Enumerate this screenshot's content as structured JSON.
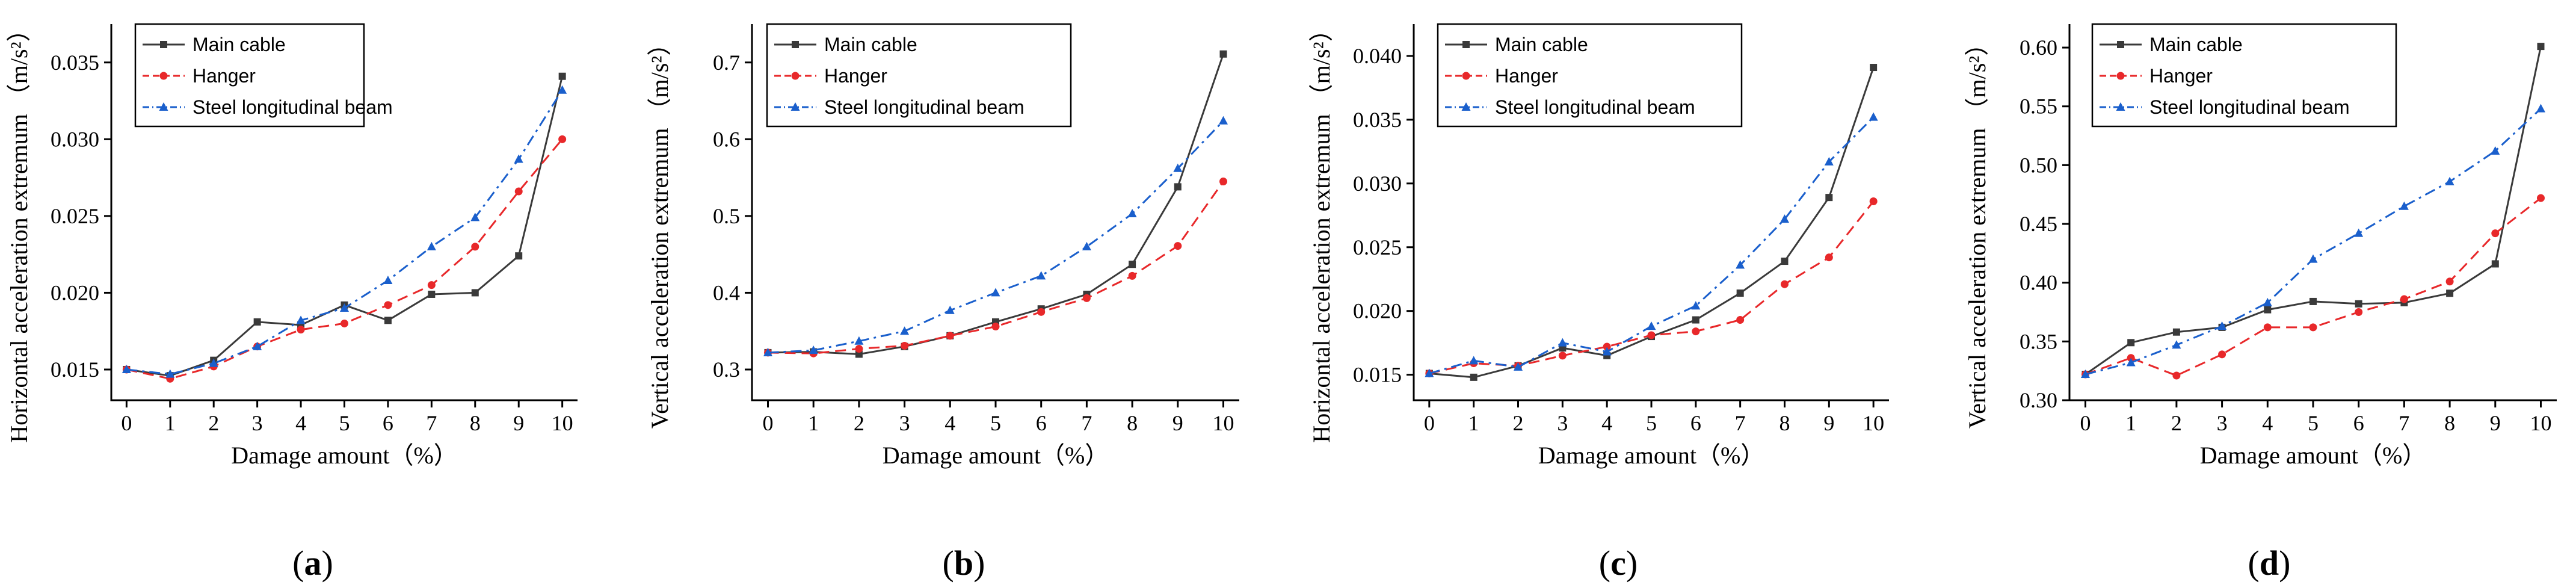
{
  "colors": {
    "main_cable": "#3a3a3a",
    "hanger": "#e8282a",
    "steel_beam": "#1a5fcc"
  },
  "chart_data": [
    {
      "type": "line",
      "panel": "(a)",
      "xlabel": "Damage amount（%）",
      "ylabel": "Horizontal acceleration extremum",
      "yunit": "（m/s²）",
      "ylim": [
        0.013,
        0.0375
      ],
      "yticks": [
        "0.015",
        "0.020",
        "0.025",
        "0.030",
        "0.035"
      ],
      "legend_position": "top-left",
      "x": [
        0,
        1,
        2,
        3,
        4,
        5,
        6,
        7,
        8,
        9,
        10
      ],
      "series": [
        {
          "name": "Main cable",
          "values": [
            0.015,
            0.0146,
            0.0156,
            0.0181,
            0.0179,
            0.0192,
            0.0182,
            0.0199,
            0.02,
            0.0224,
            0.0341
          ]
        },
        {
          "name": "Hanger",
          "values": [
            0.015,
            0.0144,
            0.0152,
            0.0165,
            0.0176,
            0.018,
            0.0192,
            0.0205,
            0.023,
            0.0266,
            0.03
          ]
        },
        {
          "name": "Steel longitudinal beam",
          "values": [
            0.015,
            0.0147,
            0.0154,
            0.0165,
            0.0182,
            0.019,
            0.0208,
            0.023,
            0.0249,
            0.0287,
            0.0332
          ]
        }
      ]
    },
    {
      "type": "line",
      "panel": "(b)",
      "xlabel": "Damage amount（%）",
      "ylabel": "Vertical acceleration extremum",
      "yunit": "（m/s²）",
      "ylim": [
        0.26,
        0.75
      ],
      "yticks": [
        "0.3",
        "0.4",
        "0.5",
        "0.6",
        "0.7"
      ],
      "legend_position": "top-left",
      "x": [
        0,
        1,
        2,
        3,
        4,
        5,
        6,
        7,
        8,
        9,
        10
      ],
      "series": [
        {
          "name": "Main cable",
          "values": [
            0.322,
            0.323,
            0.32,
            0.33,
            0.344,
            0.362,
            0.379,
            0.398,
            0.437,
            0.538,
            0.711
          ]
        },
        {
          "name": "Hanger",
          "values": [
            0.322,
            0.321,
            0.327,
            0.331,
            0.344,
            0.356,
            0.375,
            0.393,
            0.422,
            0.461,
            0.545
          ]
        },
        {
          "name": "Steel longitudinal beam",
          "values": [
            0.322,
            0.325,
            0.337,
            0.35,
            0.377,
            0.4,
            0.422,
            0.46,
            0.503,
            0.562,
            0.624
          ]
        }
      ]
    },
    {
      "type": "line",
      "panel": "(c)",
      "xlabel": "Damage amount（%）",
      "ylabel": "Horizontal acceleration extremum",
      "yunit": "（m/s²）",
      "ylim": [
        0.013,
        0.0425
      ],
      "yticks": [
        "0.015",
        "0.020",
        "0.025",
        "0.030",
        "0.035",
        "0.040"
      ],
      "legend_position": "top-left",
      "x": [
        0,
        1,
        2,
        3,
        4,
        5,
        6,
        7,
        8,
        9,
        10
      ],
      "series": [
        {
          "name": "Main cable",
          "values": [
            0.0151,
            0.0148,
            0.0157,
            0.0171,
            0.0165,
            0.018,
            0.0193,
            0.0214,
            0.0239,
            0.0289,
            0.0391
          ]
        },
        {
          "name": "Hanger",
          "values": [
            0.0151,
            0.0159,
            0.0157,
            0.0165,
            0.0172,
            0.0181,
            0.0184,
            0.0193,
            0.0221,
            0.0242,
            0.0286
          ]
        },
        {
          "name": "Steel longitudinal beam",
          "values": [
            0.0151,
            0.0161,
            0.0156,
            0.0175,
            0.0168,
            0.0188,
            0.0204,
            0.0236,
            0.0272,
            0.0317,
            0.0352
          ]
        }
      ]
    },
    {
      "type": "line",
      "panel": "(d)",
      "xlabel": "Damage amount（%）",
      "ylabel": "Vertical acceleration extremum",
      "yunit": "（m/s²）",
      "ylim": [
        0.3,
        0.62
      ],
      "yticks": [
        "0.30",
        "0.35",
        "0.40",
        "0.45",
        "0.50",
        "0.55",
        "0.60"
      ],
      "legend_position": "top-left",
      "x": [
        0,
        1,
        2,
        3,
        4,
        5,
        6,
        7,
        8,
        9,
        10
      ],
      "series": [
        {
          "name": "Main cable",
          "values": [
            0.322,
            0.349,
            0.358,
            0.362,
            0.377,
            0.384,
            0.382,
            0.383,
            0.391,
            0.416,
            0.601
          ]
        },
        {
          "name": "Hanger",
          "values": [
            0.322,
            0.336,
            0.321,
            0.339,
            0.362,
            0.362,
            0.375,
            0.386,
            0.401,
            0.442,
            0.472
          ]
        },
        {
          "name": "Steel longitudinal beam",
          "values": [
            0.322,
            0.332,
            0.347,
            0.363,
            0.383,
            0.42,
            0.442,
            0.465,
            0.486,
            0.512,
            0.548
          ]
        }
      ]
    }
  ]
}
